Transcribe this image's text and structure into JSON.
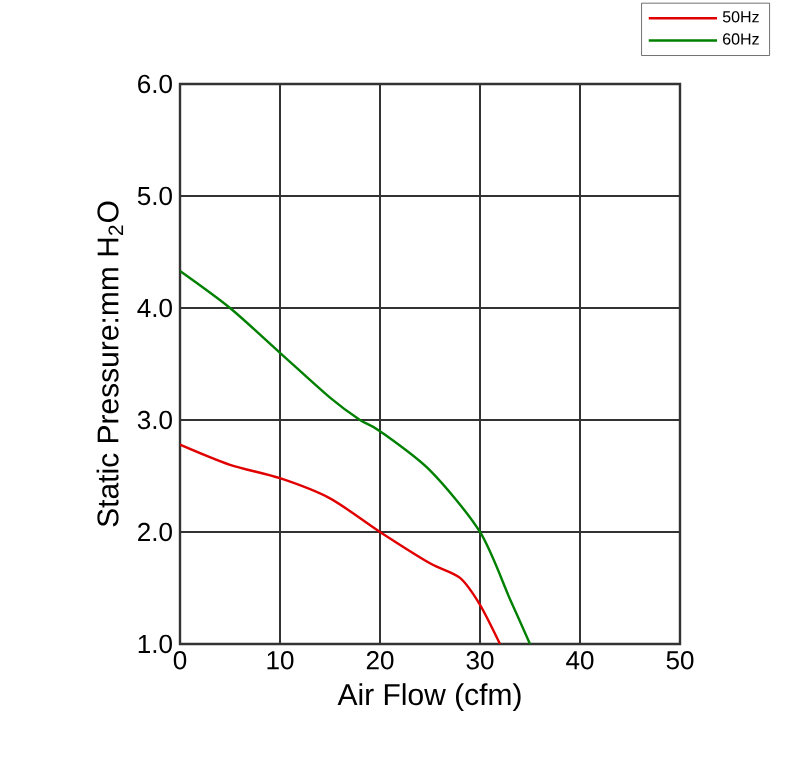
{
  "chart_data": {
    "type": "line",
    "xlabel": "Air Flow (cfm)",
    "ylabel": "Static Pressure:mm H$_{2}$O",
    "xlim": [
      0,
      50
    ],
    "xticks": [
      0,
      10,
      20,
      30,
      40,
      50
    ],
    "ylim": [
      1,
      6
    ],
    "yticks": [
      {
        "value": 1,
        "label": "1.0"
      },
      {
        "value": 2,
        "label": "2.0"
      },
      {
        "value": 3,
        "label": "3.0"
      },
      {
        "value": 4,
        "label": "4.0"
      },
      {
        "value": 5,
        "label": "5.0"
      },
      {
        "value": 6,
        "label": "6.0"
      }
    ],
    "grid": true,
    "legend": "top right",
    "marker": "none",
    "line_style": "solid",
    "series": [
      {
        "name": "50Hz",
        "color": "#e00000",
        "x": [
          0,
          5,
          10,
          15,
          20,
          25,
          28,
          30,
          32
        ],
        "values": [
          2.78,
          2.6,
          2.48,
          2.3,
          2.0,
          1.72,
          1.59,
          1.35,
          1.0
        ]
      },
      {
        "name": "60Hz",
        "color": "#008000",
        "x": [
          0,
          5,
          10,
          15,
          18,
          20,
          25,
          30,
          33,
          35
        ],
        "values": [
          4.33,
          4.0,
          3.6,
          3.2,
          3.0,
          2.9,
          2.55,
          2.0,
          1.4,
          1.0
        ]
      }
    ]
  }
}
